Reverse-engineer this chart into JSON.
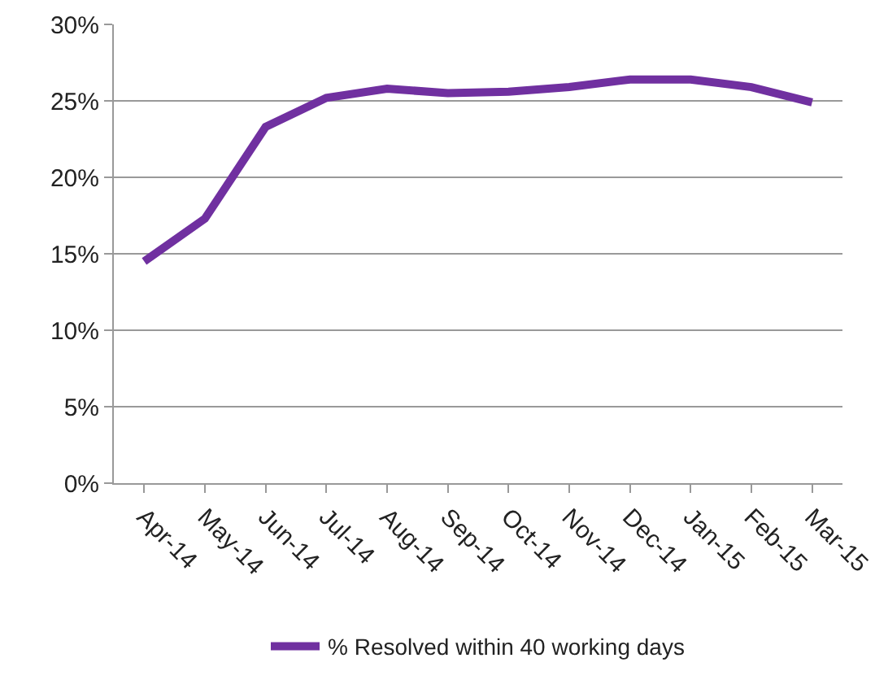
{
  "chart_data": {
    "type": "line",
    "categories": [
      "Apr-14",
      "May-14",
      "Jun-14",
      "Jul-14",
      "Aug-14",
      "Sep-14",
      "Oct-14",
      "Nov-14",
      "Dec-14",
      "Jan-15",
      "Feb-15",
      "Mar-15"
    ],
    "series": [
      {
        "name": "% Resolved within 40 working days",
        "color": "#7030a0",
        "values": [
          14.5,
          17.3,
          23.3,
          25.2,
          25.8,
          25.5,
          25.6,
          25.9,
          26.4,
          26.4,
          25.9,
          24.9
        ]
      }
    ],
    "ylim": [
      0,
      30
    ],
    "yticks": [
      {
        "value": 0,
        "label": "0%"
      },
      {
        "value": 5,
        "label": "5%"
      },
      {
        "value": 10,
        "label": "10%"
      },
      {
        "value": 15,
        "label": "15%"
      },
      {
        "value": 20,
        "label": "20%"
      },
      {
        "value": 25,
        "label": "25%"
      },
      {
        "value": 30,
        "label": "30%"
      }
    ],
    "grid": "y",
    "legend": "bottom",
    "marker": "none",
    "line_style": "solid"
  }
}
